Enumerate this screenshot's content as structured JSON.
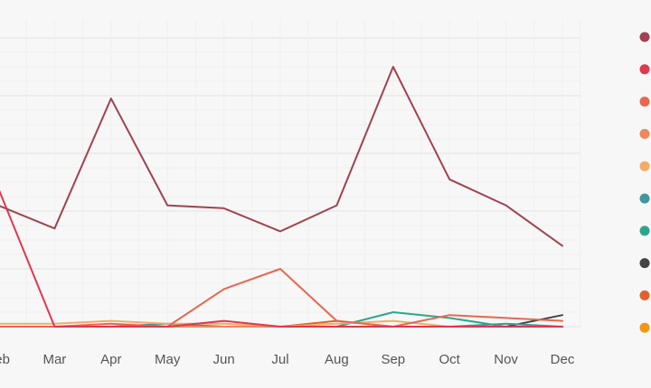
{
  "chart_data": {
    "type": "line",
    "title": "",
    "xlabel": "",
    "ylabel": "",
    "categories": [
      "Feb",
      "Mar",
      "Apr",
      "May",
      "Jun",
      "Jul",
      "Aug",
      "Sep",
      "Oct",
      "Nov",
      "Dec"
    ],
    "ylim": [
      0,
      100
    ],
    "grid": true,
    "legend_position": "right",
    "series": [
      {
        "color": "#a0434f",
        "values": [
          42,
          34,
          79,
          42,
          41,
          33,
          42,
          90,
          51,
          42,
          28
        ]
      },
      {
        "color": "#e2374c",
        "values": [
          48,
          0,
          0,
          0,
          2,
          0,
          0,
          0,
          0,
          0,
          0
        ]
      },
      {
        "color": "#e9664f",
        "values": [
          0,
          0,
          1,
          0,
          13,
          20,
          2,
          0,
          4,
          3,
          2
        ]
      },
      {
        "color": "#f0865a",
        "values": [
          0,
          0,
          0,
          0,
          0,
          0,
          0,
          0,
          0,
          0,
          0
        ]
      },
      {
        "color": "#f2ac66",
        "values": [
          1,
          1,
          2,
          1,
          1,
          0,
          1,
          2,
          0,
          0,
          0
        ]
      },
      {
        "color": "#43969a",
        "values": [
          0,
          0,
          0,
          1,
          0,
          0,
          0,
          0,
          0,
          1,
          0
        ]
      },
      {
        "color": "#2ea58b",
        "values": [
          0,
          0,
          0,
          0,
          0,
          0,
          0,
          5,
          3,
          0,
          0
        ]
      },
      {
        "color": "#444444",
        "values": [
          0,
          0,
          0,
          0,
          0,
          0,
          0,
          0,
          0,
          0,
          4
        ]
      },
      {
        "color": "#e1602d",
        "values": [
          0,
          0,
          0,
          0,
          0,
          0,
          2,
          0,
          0,
          0,
          0
        ]
      },
      {
        "color": "#f2970f",
        "values": [
          0,
          0,
          0,
          0,
          0,
          0,
          0,
          0,
          0,
          0,
          0
        ]
      }
    ]
  }
}
